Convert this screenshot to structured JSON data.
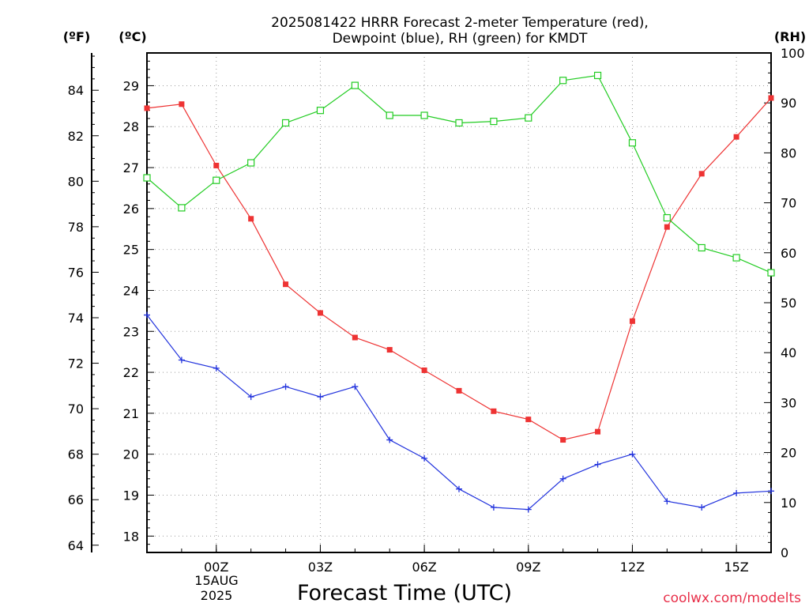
{
  "chart_data": {
    "type": "line",
    "title_line1": "2025081422 HRRR Forecast 2-meter Temperature (red),",
    "title_line2": "Dewpoint (blue), RH (green) for KMDT",
    "xlabel": "Forecast Time (UTC)",
    "unit_left_outer": "(ºF)",
    "unit_left_inner": "(ºC)",
    "unit_right": "(RH)",
    "date_label_line1": "15AUG",
    "date_label_line2": "2025",
    "watermark": "coolwx.com/modelts",
    "x_range": [
      -2,
      16
    ],
    "x_ticks": [
      {
        "x": 0,
        "label": "00Z"
      },
      {
        "x": 3,
        "label": "03Z"
      },
      {
        "x": 6,
        "label": "06Z"
      },
      {
        "x": 9,
        "label": "09Z"
      },
      {
        "x": 12,
        "label": "12Z"
      },
      {
        "x": 15,
        "label": "15Z"
      }
    ],
    "x": [
      -2,
      -1,
      0,
      1,
      2,
      3,
      4,
      5,
      6,
      7,
      8,
      9,
      10,
      11,
      12,
      13,
      14,
      15,
      16
    ],
    "celsius_axis": {
      "range": [
        17.6,
        29.8
      ],
      "ticks": [
        18,
        19,
        20,
        21,
        22,
        23,
        24,
        25,
        26,
        27,
        28,
        29
      ]
    },
    "fahrenheit_axis": {
      "ticks": [
        64,
        66,
        68,
        70,
        72,
        74,
        76,
        78,
        80,
        82,
        84
      ]
    },
    "rh_axis": {
      "range": [
        0,
        100
      ],
      "ticks": [
        0,
        10,
        20,
        30,
        40,
        50,
        60,
        70,
        80,
        90,
        100
      ]
    },
    "grid": true,
    "series": [
      {
        "name": "Temperature",
        "color": "#ee3333",
        "marker": "filled-square",
        "axis": "celsius",
        "values": [
          28.45,
          28.55,
          27.05,
          25.75,
          24.15,
          23.45,
          22.85,
          22.55,
          22.05,
          21.55,
          21.05,
          20.85,
          20.35,
          20.55,
          23.25,
          25.55,
          26.85,
          27.75,
          28.7
        ]
      },
      {
        "name": "Dewpoint",
        "color": "#2233dd",
        "marker": "plus",
        "axis": "celsius",
        "values": [
          23.4,
          22.3,
          22.1,
          21.4,
          21.65,
          21.4,
          21.65,
          20.35,
          19.9,
          19.15,
          18.7,
          18.65,
          19.4,
          19.75,
          20.0,
          18.85,
          18.7,
          19.05,
          19.1
        ]
      },
      {
        "name": "RH",
        "color": "#22cc22",
        "marker": "open-square",
        "axis": "rh",
        "values": [
          75,
          69,
          74.5,
          78,
          86,
          88.5,
          93.5,
          87.5,
          87.5,
          86,
          86.3,
          87,
          94.5,
          95.5,
          82,
          67,
          61,
          59,
          56
        ]
      }
    ]
  }
}
